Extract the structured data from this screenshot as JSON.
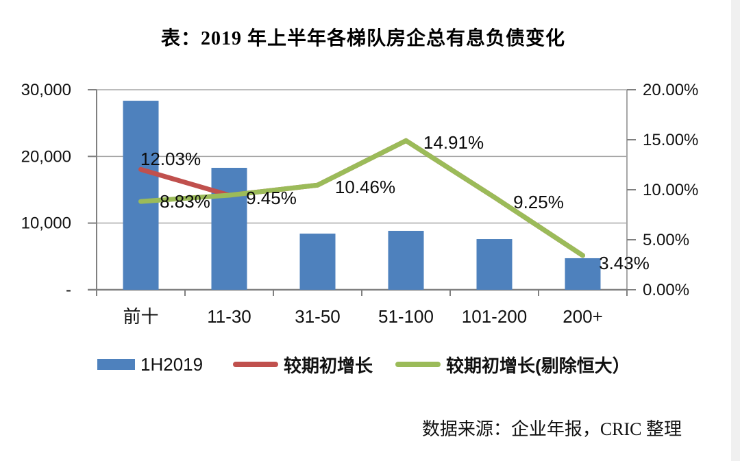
{
  "figure": {
    "title": "表：2019 年上半年各梯队房企总有息负债变化",
    "source": "数据来源：企业年报，CRIC 整理"
  },
  "legend": {
    "position": "bottom",
    "items": [
      {
        "label": "1H2019",
        "swatch": "bar",
        "color": "#4E81BD"
      },
      {
        "label": "较期初增长",
        "swatch": "line",
        "color": "#C0504D"
      },
      {
        "label": "较期初增长(剔除恒大）",
        "swatch": "line",
        "color": "#9BBB59"
      }
    ]
  },
  "chart_data": {
    "type": "bar",
    "subtype": "bar-line-combo-dual-axis",
    "title": "表：2019 年上半年各梯队房企总有息负债变化",
    "categories": [
      "前十",
      "11-30",
      "31-50",
      "51-100",
      "101-200",
      "200+"
    ],
    "series": [
      {
        "name": "1H2019",
        "type": "bar",
        "axis": "left",
        "color": "#4E81BD",
        "values": [
          28350,
          18290,
          8420,
          8840,
          7600,
          4730
        ]
      },
      {
        "name": "较期初增长",
        "type": "line",
        "axis": "right",
        "color": "#C0504D",
        "values": [
          12.03,
          9.45,
          10.46,
          14.91,
          9.25,
          3.43
        ],
        "note": "visibly distinct only from 前十 to 11-30; overlapped by green line afterwards"
      },
      {
        "name": "较期初增长(剔除恒大）",
        "type": "line",
        "axis": "right",
        "color": "#9BBB59",
        "values": [
          8.83,
          9.45,
          10.46,
          14.91,
          9.25,
          3.43
        ]
      }
    ],
    "data_labels": [
      "12.03%",
      "8.83%",
      "9.45%",
      "10.46%",
      "14.91%",
      "9.25%",
      "3.43%"
    ],
    "left_axis": {
      "range": [
        0,
        30000
      ],
      "tick_labels": [
        "30,000",
        "20,000",
        "10,000",
        "-"
      ]
    },
    "right_axis": {
      "range_percent": [
        0,
        20
      ],
      "tick_labels": [
        "20.00%",
        "15.00%",
        "10.00%",
        "5.00%",
        "0.00%"
      ]
    },
    "grid": "horizontal",
    "legend_position": "bottom",
    "source": "数据来源：企业年报，CRIC 整理"
  }
}
